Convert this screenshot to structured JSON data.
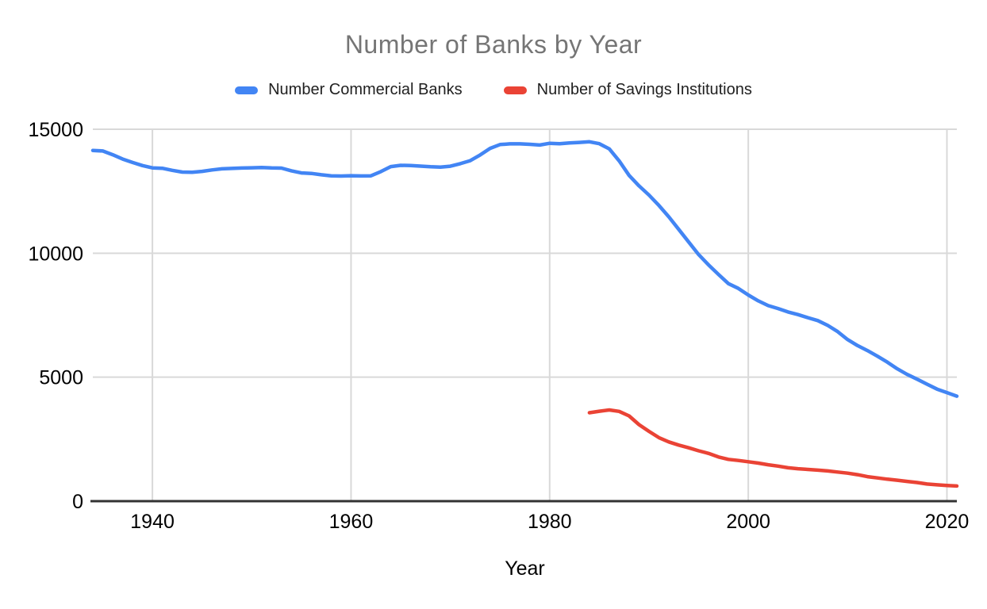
{
  "title": "Number of Banks by Year",
  "axis": {
    "x_title": "Year"
  },
  "legend": {
    "items": [
      {
        "label": "Number Commercial Banks",
        "color": "#4285F4"
      },
      {
        "label": "Number of Savings Institutions",
        "color": "#EA4335"
      }
    ]
  },
  "styles": {
    "grid_color": "#D9D9D9",
    "baseline_color": "#333333",
    "tick_label_color": "#000000",
    "title_color": "#757575",
    "background": "#ffffff"
  },
  "chart_data": {
    "type": "line",
    "title": "Number of Banks by Year",
    "xlabel": "Year",
    "ylabel": "",
    "xlim": [
      1934,
      2021
    ],
    "ylim": [
      0,
      15000
    ],
    "xticks": [
      1940,
      1960,
      1980,
      2000,
      2020
    ],
    "yticks": [
      0,
      5000,
      10000,
      15000
    ],
    "grid": true,
    "legend_position": "top",
    "series": [
      {
        "name": "Number Commercial Banks",
        "color": "#4285F4",
        "x": [
          1934,
          1935,
          1936,
          1937,
          1938,
          1939,
          1940,
          1941,
          1942,
          1943,
          1944,
          1945,
          1946,
          1947,
          1948,
          1949,
          1950,
          1951,
          1952,
          1953,
          1954,
          1955,
          1956,
          1957,
          1958,
          1959,
          1960,
          1961,
          1962,
          1963,
          1964,
          1965,
          1966,
          1967,
          1968,
          1969,
          1970,
          1971,
          1972,
          1973,
          1974,
          1975,
          1976,
          1977,
          1978,
          1979,
          1980,
          1981,
          1982,
          1983,
          1984,
          1985,
          1986,
          1987,
          1988,
          1989,
          1990,
          1991,
          1992,
          1993,
          1994,
          1995,
          1996,
          1997,
          1998,
          1999,
          2000,
          2001,
          2002,
          2003,
          2004,
          2005,
          2006,
          2007,
          2008,
          2009,
          2010,
          2011,
          2012,
          2013,
          2014,
          2015,
          2016,
          2017,
          2018,
          2019,
          2020,
          2021
        ],
        "values": [
          14146,
          14125,
          13973,
          13797,
          13661,
          13534,
          13442,
          13426,
          13343,
          13274,
          13268,
          13302,
          13359,
          13403,
          13419,
          13436,
          13446,
          13455,
          13439,
          13432,
          13323,
          13237,
          13218,
          13165,
          13124,
          13114,
          13126,
          13115,
          13124,
          13291,
          13493,
          13544,
          13538,
          13514,
          13487,
          13473,
          13511,
          13612,
          13733,
          13964,
          14230,
          14384,
          14410,
          14411,
          14391,
          14364,
          14434,
          14414,
          14451,
          14469,
          14496,
          14417,
          14210,
          13723,
          13137,
          12715,
          12347,
          11927,
          11467,
          10960,
          10453,
          9942,
          9528,
          9143,
          8774,
          8580,
          8315,
          8080,
          7888,
          7770,
          7631,
          7526,
          7401,
          7284,
          7087,
          6839,
          6519,
          6275,
          6072,
          5847,
          5607,
          5338,
          5112,
          4918,
          4717,
          4519,
          4377,
          4236
        ]
      },
      {
        "name": "Number of Savings Institutions",
        "color": "#EA4335",
        "x": [
          1984,
          1985,
          1986,
          1987,
          1988,
          1989,
          1990,
          1991,
          1992,
          1993,
          1994,
          1995,
          1996,
          1997,
          1998,
          1999,
          2000,
          2001,
          2002,
          2003,
          2004,
          2005,
          2006,
          2007,
          2008,
          2009,
          2010,
          2011,
          2012,
          2013,
          2014,
          2015,
          2016,
          2017,
          2018,
          2019,
          2020,
          2021
        ],
        "values": [
          3566,
          3626,
          3677,
          3622,
          3438,
          3087,
          2815,
          2561,
          2390,
          2262,
          2152,
          2030,
          1926,
          1780,
          1687,
          1642,
          1589,
          1535,
          1467,
          1413,
          1345,
          1307,
          1279,
          1251,
          1219,
          1173,
          1128,
          1067,
          987,
          936,
          886,
          844,
          796,
          752,
          691,
          659,
          634,
          611
        ]
      }
    ]
  }
}
